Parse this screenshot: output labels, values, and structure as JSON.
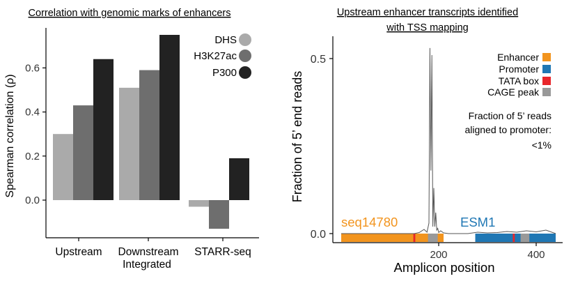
{
  "left_panel": {
    "title": "Correlation with genomic marks of enhancers",
    "ylabel": "Spearman correlation (ρ)"
  },
  "right_panel": {
    "title_line1": "Upstream enhancer transcripts identified",
    "title_line2": "with TSS mapping",
    "ylabel": "Fraction of 5’ end reads",
    "xlabel": "Amplicon position",
    "annotation_line1": "Fraction of 5’ reads",
    "annotation_line2": "aligned to promoter:",
    "annotation_line3": "<1%",
    "seq_label": "seq14780",
    "gene_label": "ESM1"
  },
  "colors": {
    "DHS": "#aaaaaa",
    "H3K27ac": "#6e6e6e",
    "P300": "#222222",
    "Enhancer": "#f2941e",
    "Promoter": "#1f77b4",
    "TATA box": "#e8262b",
    "CAGE peak": "#999999",
    "seq_text": "#f2941e",
    "gene_text": "#1f77b4"
  },
  "chart_data": [
    {
      "type": "bar",
      "title": "Correlation with genomic marks of enhancers",
      "ylabel": "Spearman correlation (ρ)",
      "categories": [
        "Upstream",
        "Downstream\nIntegrated",
        "STARR-seq"
      ],
      "series": [
        {
          "name": "DHS",
          "values": [
            0.3,
            0.51,
            -0.03
          ]
        },
        {
          "name": "H3K27ac",
          "values": [
            0.43,
            0.59,
            -0.13
          ]
        },
        {
          "name": "P300",
          "values": [
            0.64,
            0.75,
            0.19
          ]
        }
      ],
      "ylim": [
        -0.16,
        0.8
      ],
      "yticks": [
        "0.0",
        "0.2",
        "0.4",
        "0.6"
      ],
      "legend": "top-right",
      "grid": false
    },
    {
      "type": "line",
      "title": "Upstream enhancer transcripts identified with TSS mapping",
      "xlabel": "Amplicon position",
      "ylabel": "Fraction of 5’ end reads",
      "xlim": [
        0,
        460
      ],
      "ylim": [
        0,
        0.56
      ],
      "xticks": [
        "200",
        "400"
      ],
      "yticks": [
        "0.0",
        "0.5"
      ],
      "series": [
        {
          "x": [
            0,
            150,
            160,
            170,
            176,
            180,
            182,
            184,
            186,
            188,
            190,
            192,
            194,
            196,
            198,
            200,
            204,
            210,
            220,
            240,
            260,
            280,
            300,
            320,
            340,
            360,
            380,
            400,
            420,
            440
          ],
          "y": [
            0.0,
            0.0,
            0.003,
            0.012,
            0.004,
            0.03,
            0.53,
            0.18,
            0.51,
            0.02,
            0.13,
            0.02,
            0.06,
            0.01,
            0.015,
            0.003,
            0.008,
            0.002,
            0.0,
            0.0,
            0.0,
            0.004,
            0.002,
            0.003,
            0.006,
            0.004,
            0.008,
            0.005,
            0.01,
            0.0
          ]
        }
      ],
      "tracks": [
        {
          "name": "Enhancer",
          "start": 0,
          "end": 210
        },
        {
          "name": "Promoter",
          "start": 275,
          "end": 440
        },
        {
          "name": "TATA box",
          "start": 148,
          "end": 152
        },
        {
          "name": "TATA box",
          "start": 352,
          "end": 356
        },
        {
          "name": "CAGE peak",
          "start": 178,
          "end": 198
        },
        {
          "name": "CAGE peak",
          "start": 368,
          "end": 386
        }
      ],
      "legend": "top-right",
      "grid": false
    }
  ]
}
